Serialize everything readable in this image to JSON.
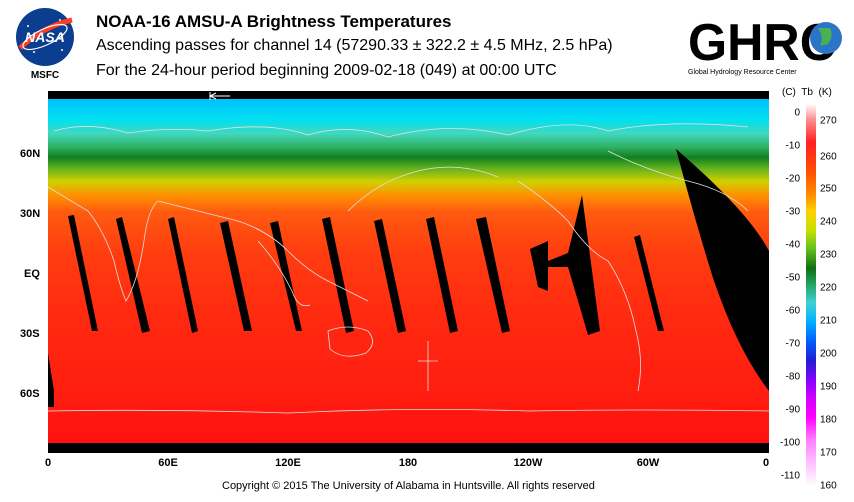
{
  "header": {
    "title": "NOAA-16 AMSU-A Brightness Temperatures",
    "subtitle": "Ascending passes for channel 14 (57290.33 ± 322.2 ± 4.5 MHz, 2.5 hPa)",
    "period": "For the 24-hour period beginning 2009-02-18 (049) at 00:00 UTC"
  },
  "logos": {
    "nasa_text": "NASA",
    "msfc_text": "MSFC",
    "ghrc_text": "GHRC",
    "ghrc_sub": "Global Hydrology Resource Center"
  },
  "map": {
    "lat_labels": [
      "60N",
      "30N",
      "EQ",
      "30S",
      "60S"
    ],
    "lon_labels": [
      "0",
      "60E",
      "120E",
      "180",
      "120W",
      "60W",
      "0"
    ]
  },
  "colorbar": {
    "header": "(C)  Tb  (K)",
    "celsius_ticks": [
      "0",
      "-10",
      "-20",
      "-30",
      "-40",
      "-50",
      "-60",
      "-70",
      "-80",
      "-90",
      "-100",
      "-110"
    ],
    "kelvin_ticks": [
      "270",
      "260",
      "250",
      "240",
      "230",
      "220",
      "210",
      "200",
      "190",
      "180",
      "170",
      "160"
    ]
  },
  "footer": {
    "copyright": "Copyright © 2015 The University of Alabama in Huntsville.  All rights reserved"
  }
}
